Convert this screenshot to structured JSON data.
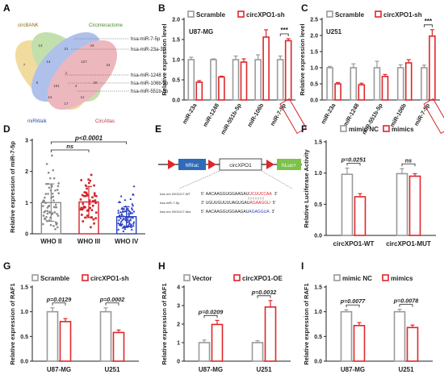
{
  "panels": {
    "A": {
      "letter": "A",
      "sets": [
        "circBANK",
        "Circinteractome",
        "miRWalk",
        "CircAtlas"
      ],
      "set_colors": [
        "#e8bf52",
        "#93c86a",
        "#6f8fdb",
        "#e07d8a"
      ],
      "region_counts": [
        "13",
        "43",
        "21",
        "7",
        "24",
        "14",
        "127",
        "1",
        "5",
        "20",
        "101",
        "4",
        "14",
        "11",
        "17"
      ],
      "labels": [
        "hsa-miR-7-5p",
        "hsa-miR-23a-3p",
        "hsa-miR-1248",
        "hsa-miR-106b-3p",
        "hsa-miR-551b-5p"
      ]
    },
    "D": {
      "letter": "D",
      "sig": "p<0.0001",
      "ns": "ns"
    },
    "E": {
      "letter": "E",
      "boxes": [
        "hRluc",
        "circXPO1",
        "hLuc+"
      ],
      "seq_rows": [
        {
          "name": "has circ 0001017-WT",
          "prime5": "5'",
          "seq": "AACAAGGUGGAAGAU",
          "site": "UCUUCCAA",
          "prime3": "3'"
        },
        {
          "name": "hsa-miR-7-5p",
          "prime5": "3'",
          "seq": "UGUUGUUUUAGUGAU",
          "site": "AGAAGGU",
          "prime3": "5'"
        },
        {
          "name": "has circ 0001017-Mut",
          "prime5": "5'",
          "seq": "AACAAGGUGGAAGAU",
          "site": "AGAGGUA",
          "prime3": "3'"
        }
      ]
    }
  },
  "chart_data": [
    {
      "id": "B",
      "type": "bar",
      "letter": "B",
      "inset": "U87-MG",
      "ylabel": "Relative expression level",
      "ylim": [
        0,
        2.0
      ],
      "yticks": [
        0,
        0.5,
        1.0,
        1.5,
        2.0
      ],
      "tick_labels": [
        "0.0",
        "0.5",
        "1.0",
        "1.5",
        "2.0"
      ],
      "categories": [
        "miR-23a",
        "miR-1248",
        "miR-551b-5p",
        "miR-106b",
        "miR-7-5p"
      ],
      "boxed_category": 4,
      "series": [
        {
          "name": "Scramble",
          "color": "#9a9a9a",
          "values": [
            1.0,
            1.0,
            1.0,
            1.0,
            1.0
          ],
          "err": [
            0.06,
            0.02,
            0.09,
            0.12,
            0.09
          ]
        },
        {
          "name": "circXPO1-sh",
          "color": "#e0262a",
          "values": [
            0.44,
            0.57,
            0.94,
            1.56,
            1.47
          ],
          "err": [
            0.04,
            0.02,
            0.08,
            0.18,
            0.05
          ]
        }
      ],
      "sig": [
        {
          "cat": 4,
          "text": "***"
        }
      ]
    },
    {
      "id": "C",
      "type": "bar",
      "letter": "C",
      "inset": "U251",
      "ylabel": "Relative expression level",
      "ylim": [
        0,
        2.5
      ],
      "yticks": [
        0,
        0.5,
        1.0,
        1.5,
        2.0,
        2.5
      ],
      "tick_labels": [
        "0.0",
        "0.5",
        "1.0",
        "1.5",
        "2.0",
        "2.5"
      ],
      "categories": [
        "miR-23a",
        "miR-1248",
        "miR-551b-5p",
        "miR-106b",
        "miR-7-5p"
      ],
      "boxed_category": 4,
      "series": [
        {
          "name": "Scramble",
          "color": "#9a9a9a",
          "values": [
            1.0,
            1.0,
            1.0,
            1.0,
            1.0
          ],
          "err": [
            0.04,
            0.12,
            0.2,
            0.09,
            0.08
          ]
        },
        {
          "name": "circXPO1-sh",
          "color": "#e0262a",
          "values": [
            0.5,
            0.47,
            0.73,
            1.15,
            1.98
          ],
          "err": [
            0.04,
            0.05,
            0.06,
            0.1,
            0.2
          ]
        }
      ],
      "sig": [
        {
          "cat": 4,
          "text": "***"
        }
      ]
    },
    {
      "id": "D",
      "type": "scatter",
      "letter": "D",
      "ylabel": "Relative expression of miR-7-5p",
      "ylim": [
        0,
        3
      ],
      "yticks": [
        0,
        1,
        2,
        3
      ],
      "tick_labels": [
        "0",
        "1",
        "2",
        "3"
      ],
      "categories": [
        "WHO II",
        "WHO III",
        "WHO IV"
      ],
      "colors": [
        "#8a8a8a",
        "#d2232a",
        "#2a3fbf"
      ],
      "means": [
        1.0,
        1.02,
        0.55
      ],
      "sds": [
        0.6,
        0.5,
        0.32
      ],
      "points": [
        [
          0.31,
          0.84,
          2.51,
          0.85,
          0.48,
          0.43,
          1.07,
          0.58,
          1.6,
          0.28,
          1.39,
          1.07,
          1.28,
          1.29,
          0.64,
          0.73,
          0.68,
          1.78,
          1.3,
          0.41,
          1.57,
          0.37,
          1.05,
          1.96,
          1.19,
          1.41,
          1.28,
          0.52,
          0.69,
          0.89,
          0.65,
          1.52,
          0.32,
          1.16,
          0.9,
          0.25,
          1.53,
          0.54,
          1.39,
          0.15,
          0.58,
          1.6,
          0.66,
          0.33,
          0.47,
          0.7,
          0.86,
          1.62,
          2.24,
          1.16,
          0.93,
          0.69,
          0.88,
          2.04,
          0.21,
          0.99,
          1.78,
          0.85,
          1.03,
          0.73,
          0.63,
          0.3,
          0.49,
          1.48
        ],
        [
          0.78,
          0.52,
          0.96,
          0.33,
          0.78,
          1.45,
          1.89,
          0.99,
          0.87,
          0.77,
          0.9,
          1.72,
          1.55,
          0.83,
          1.3,
          0.96,
          0.58,
          0.52,
          1.21,
          1.33,
          1.63,
          0.46,
          0.61,
          1.32,
          0.21,
          1.07,
          0.83,
          1.23,
          1.17,
          1.1,
          0.85,
          1.07,
          1.55,
          1.24,
          1.27,
          0.53,
          0.5,
          1.21,
          1.74,
          1.05,
          0.83,
          1.21,
          1.7,
          1.23,
          0.4,
          0.74,
          0.76,
          0.68
        ],
        [
          0.14,
          0.71,
          0.53,
          0.83,
          0.31,
          0.73,
          0.59,
          0.26,
          0.61,
          0.74,
          0.46,
          0.44,
          0.09,
          0.81,
          0.67,
          0.5,
          0.22,
          0.35,
          0.38,
          0.44,
          0.45,
          0.53,
          0.6,
          0.48,
          0.27,
          1.27,
          0.27,
          0.51,
          0.65,
          0.68,
          0.73,
          0.38,
          0.26,
          1.02,
          0.25,
          0.4,
          0.33,
          0.64,
          0.24,
          1.12,
          1.02,
          0.49,
          0.24,
          0.96,
          0.7,
          1.09,
          0.32,
          1.53,
          0.83,
          0.25,
          0.3,
          0.29,
          0.21,
          0.65,
          0.52,
          1.21,
          0.88,
          0.44,
          0.75,
          0.2,
          0.54,
          0.14,
          0.31,
          0.21,
          0.54,
          1.26,
          0.81,
          0.73,
          0.69,
          0.55,
          0.57,
          0.46,
          0.78,
          0.33,
          0.16,
          0.72,
          0.72,
          0.31,
          0.79,
          0.22,
          0.56,
          0.81,
          0.75,
          0.91,
          0.39,
          0.44,
          0.25,
          0.34,
          0.8,
          0.22
        ]
      ]
    },
    {
      "id": "F",
      "type": "bar",
      "letter": "F",
      "ylabel": "Relative Luciferase Activity",
      "ylim": [
        0,
        1.5
      ],
      "yticks": [
        0,
        0.5,
        1.0,
        1.5
      ],
      "tick_labels": [
        "0.0",
        "0.5",
        "1.0",
        "1.5"
      ],
      "categories": [
        "circXPO1-WT",
        "circXPO1-MUT"
      ],
      "series": [
        {
          "name": "mimic NC",
          "color": "#9a9a9a",
          "values": [
            0.98,
            0.99
          ],
          "err": [
            0.1,
            0.08
          ]
        },
        {
          "name": "mimics",
          "color": "#e0262a",
          "values": [
            0.62,
            0.95
          ],
          "err": [
            0.05,
            0.04
          ]
        }
      ],
      "sig": [
        {
          "cat": 0,
          "text": "p=0.0251"
        },
        {
          "cat": 1,
          "text": "ns"
        }
      ]
    },
    {
      "id": "G",
      "type": "bar",
      "letter": "G",
      "ylabel": "Relative expression of RAF1",
      "ylim": [
        0,
        1.5
      ],
      "yticks": [
        0,
        0.5,
        1.0,
        1.5
      ],
      "tick_labels": [
        "0.0",
        "0.5",
        "1.0",
        "1.5"
      ],
      "categories": [
        "U87-MG",
        "U251"
      ],
      "series": [
        {
          "name": "Scramble",
          "color": "#9a9a9a",
          "values": [
            1.0,
            1.0
          ],
          "err": [
            0.08,
            0.08
          ]
        },
        {
          "name": "circXPO1-sh",
          "color": "#e0262a",
          "values": [
            0.8,
            0.58
          ],
          "err": [
            0.06,
            0.05
          ]
        }
      ],
      "sig": [
        {
          "cat": 0,
          "text": "p=0.0129"
        },
        {
          "cat": 1,
          "text": "p=0.0002"
        }
      ]
    },
    {
      "id": "H",
      "type": "bar",
      "letter": "H",
      "ylabel": "Relative expression of RAF1",
      "ylim": [
        0,
        4
      ],
      "yticks": [
        0,
        1,
        2,
        3,
        4
      ],
      "tick_labels": [
        "0",
        "1",
        "2",
        "3",
        "4"
      ],
      "categories": [
        "U87-MG",
        "U251"
      ],
      "series": [
        {
          "name": "Vector",
          "color": "#9a9a9a",
          "values": [
            1.0,
            1.0
          ],
          "err": [
            0.14,
            0.1
          ]
        },
        {
          "name": "circXPO1-OE",
          "color": "#e0262a",
          "values": [
            1.98,
            2.92
          ],
          "err": [
            0.22,
            0.35
          ]
        }
      ],
      "sig": [
        {
          "cat": 0,
          "text": "p=0.0209"
        },
        {
          "cat": 1,
          "text": "p=0.0032"
        }
      ]
    },
    {
      "id": "I",
      "type": "bar",
      "letter": "I",
      "ylabel": "Relative expression of RAF1",
      "ylim": [
        0,
        1.5
      ],
      "yticks": [
        0,
        0.5,
        1.0,
        1.5
      ],
      "tick_labels": [
        "0.0",
        "0.5",
        "1.0",
        "1.5"
      ],
      "categories": [
        "U87-MG",
        "U251"
      ],
      "series": [
        {
          "name": "mimic NC",
          "color": "#9a9a9a",
          "values": [
            1.0,
            1.0
          ],
          "err": [
            0.04,
            0.05
          ]
        },
        {
          "name": "mimics",
          "color": "#e0262a",
          "values": [
            0.72,
            0.68
          ],
          "err": [
            0.06,
            0.05
          ]
        }
      ],
      "sig": [
        {
          "cat": 0,
          "text": "p=0.0077"
        },
        {
          "cat": 1,
          "text": "p=0.0078"
        }
      ]
    }
  ]
}
